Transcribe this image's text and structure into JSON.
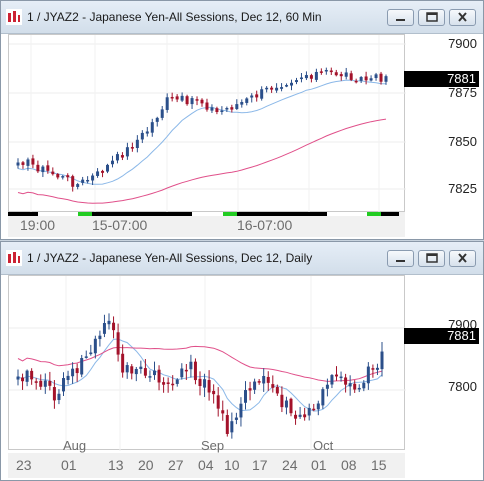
{
  "top_window": {
    "title": "1 / JYAZ2 - Japanese Yen-All Sessions, Dec 12, 60 Min",
    "y_ticks": [
      "7900",
      "7875",
      "7850",
      "7825"
    ],
    "last_price": "7881",
    "x_labels": [
      "19:00",
      "15-07:00",
      "16-07:00"
    ],
    "buttons": {
      "minimize": "minimize",
      "restore": "restore",
      "close": "close"
    }
  },
  "bottom_window": {
    "title": "1 / JYAZ2 - Japanese Yen-All Sessions, Dec 12, Daily",
    "y_ticks": [
      "7900",
      "7800"
    ],
    "last_price": "7881",
    "month_labels": [
      "Aug",
      "Sep",
      "Oct"
    ],
    "x_labels": [
      "23",
      "01",
      "13",
      "20",
      "27",
      "04",
      "10",
      "17",
      "24",
      "01",
      "08",
      "15"
    ],
    "buttons": {
      "minimize": "minimize",
      "restore": "restore",
      "close": "close"
    }
  },
  "colors": {
    "up_candle": "#2b4f8a",
    "down_candle": "#a3122a",
    "ma_fast": "#8bb8e8",
    "ma_slow": "#e0508a",
    "session_green": "#22cc22",
    "session_black": "#000000"
  }
}
